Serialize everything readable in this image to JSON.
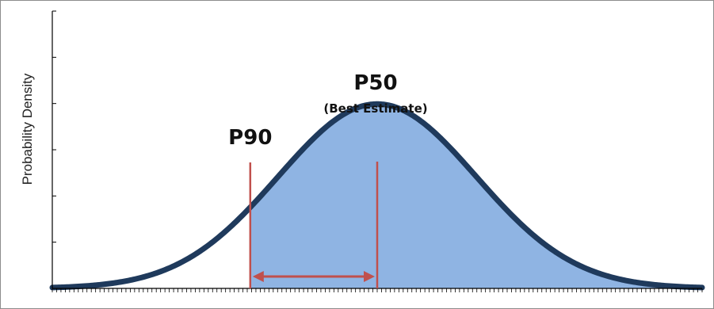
{
  "chart_data": {
    "type": "area",
    "title": "",
    "xlabel": "",
    "ylabel": "Probability Density",
    "distribution": "normal",
    "mean": 0,
    "std_dev": 1,
    "xlim": [
      -3.28,
      3.28
    ],
    "ylim": [
      0,
      0.6
    ],
    "y_ticks": [
      0.1,
      0.2,
      0.3,
      0.4,
      0.5,
      0.6
    ],
    "x_minor_ticks": 150,
    "shaded_region": {
      "from": -1.2816,
      "to": 3.28
    },
    "markers": [
      {
        "label": "P90",
        "sublabel": "",
        "x": -1.2816
      },
      {
        "label": "P50",
        "sublabel": "(Best Estimate)",
        "x": 0
      }
    ],
    "range_arrow": {
      "from": -1.2816,
      "to": 0
    },
    "colors": {
      "curve": "#1f3a5c",
      "fill": "#8fb4e3",
      "marker_line": "#c0504d",
      "axis": "#000000",
      "frame": "#8c8c8c"
    }
  }
}
